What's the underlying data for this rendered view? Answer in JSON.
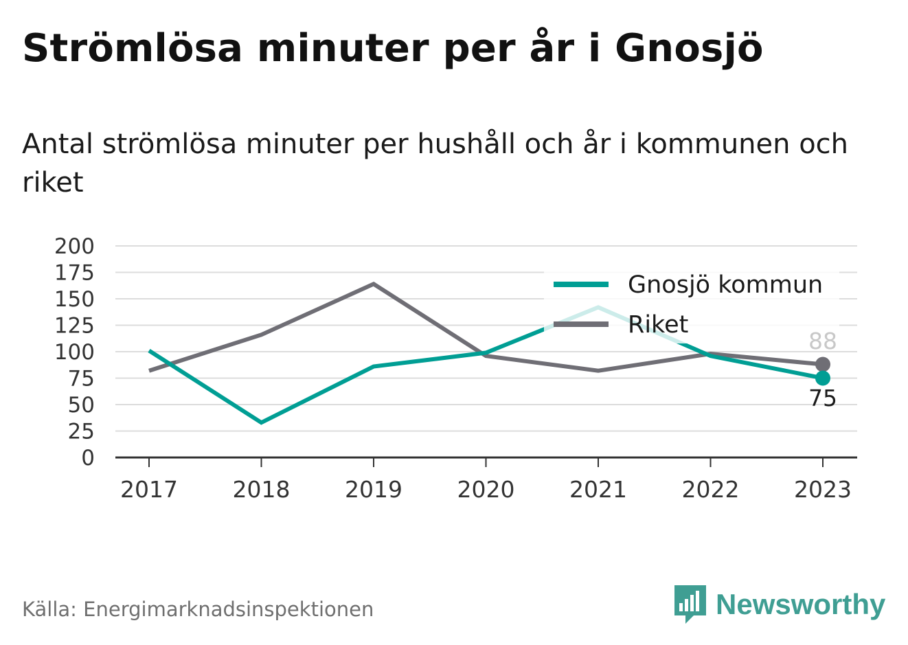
{
  "title": "Strömlösa minuter per år i Gnosjö",
  "subtitle": "Antal strömlösa minuter per hushåll och år i kommunen och riket",
  "source": "Källa: Energimarknadsinspektionen",
  "brand": {
    "name": "Newsworthy",
    "icon": "newsworthy-logo-icon",
    "color": "#3f9e93"
  },
  "chart_data": {
    "type": "line",
    "x": [
      "2017",
      "2018",
      "2019",
      "2020",
      "2021",
      "2022",
      "2023"
    ],
    "y_ticks": [
      "0",
      "25",
      "50",
      "75",
      "100",
      "125",
      "150",
      "175",
      "200"
    ],
    "ylim": [
      0,
      200
    ],
    "grid": true,
    "legend_position": "top-right",
    "series": [
      {
        "name": "Gnosjö kommun",
        "color": "#009e94",
        "values": [
          101,
          33,
          86,
          99,
          142,
          96,
          75
        ],
        "end_label": "75"
      },
      {
        "name": "Riket",
        "color": "#6f6e75",
        "values": [
          82,
          116,
          164,
          96,
          82,
          98,
          88
        ],
        "end_label": "88"
      }
    ]
  }
}
